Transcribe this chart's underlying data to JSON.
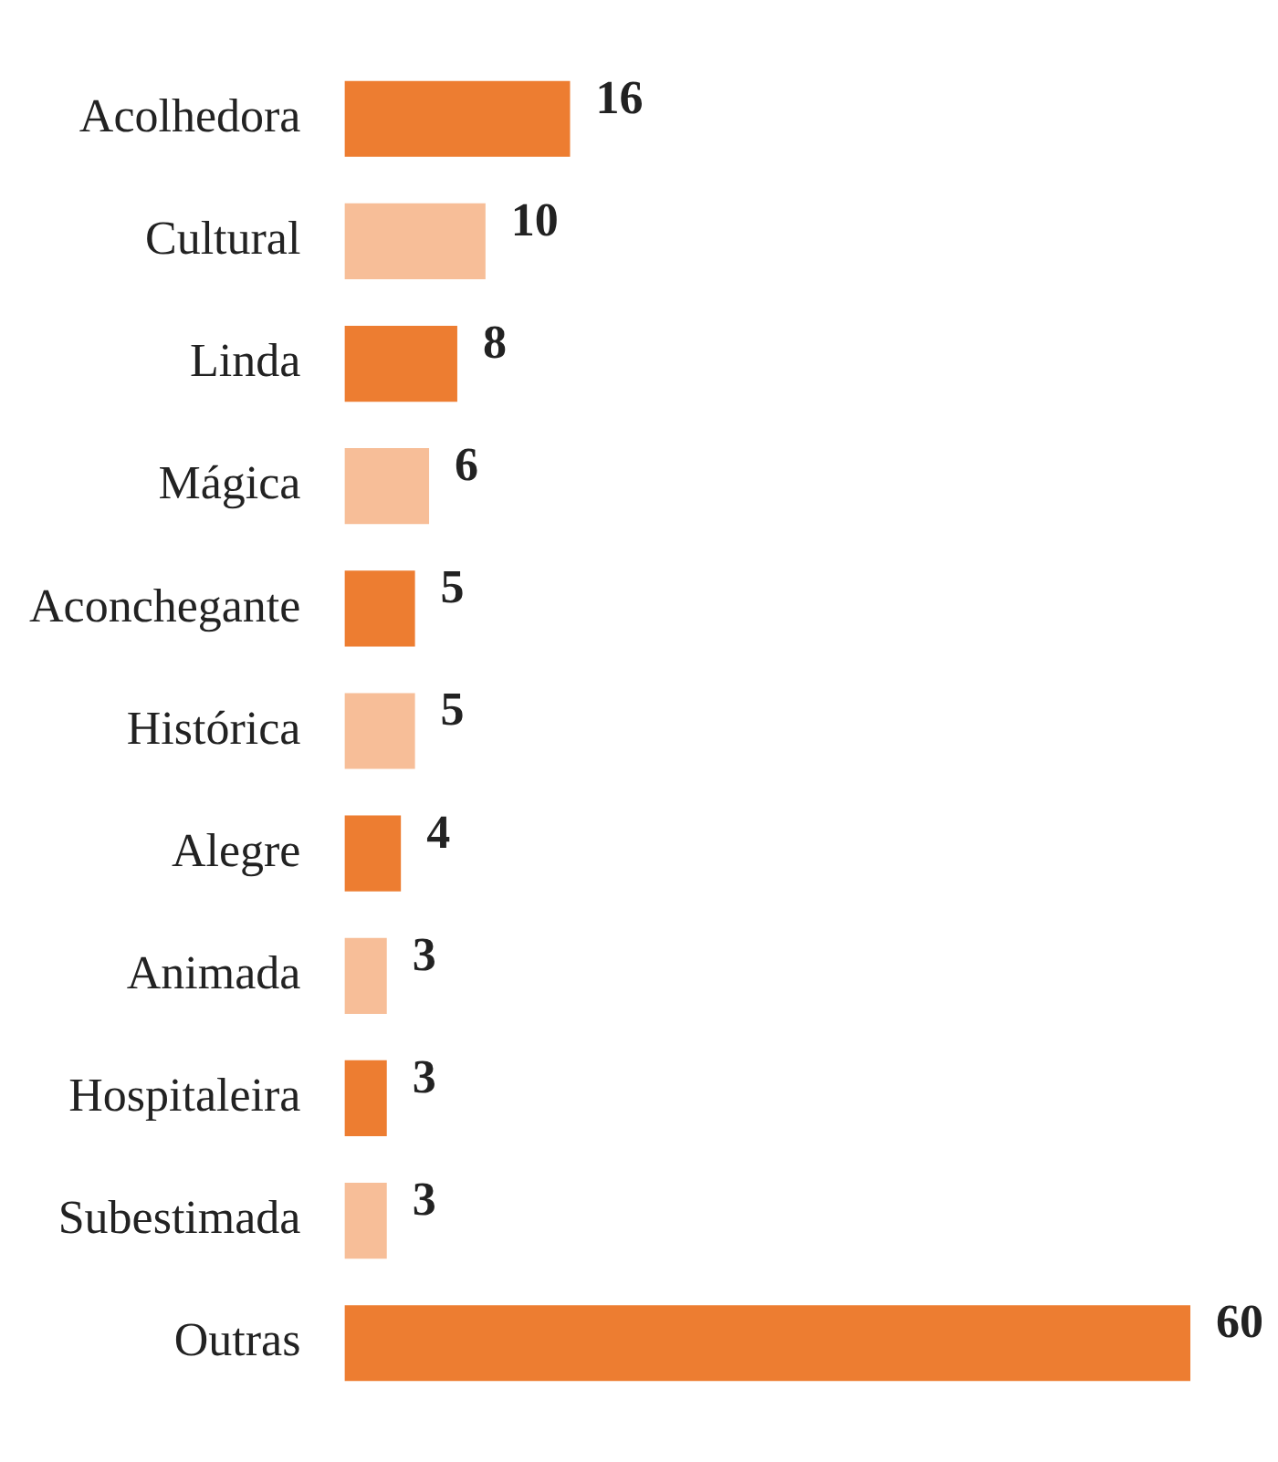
{
  "chart_data": {
    "type": "bar",
    "orientation": "horizontal",
    "categories": [
      "Acolhedora",
      "Cultural",
      "Linda",
      "Mágica",
      "Aconchegante",
      "Histórica",
      "Alegre",
      "Animada",
      "Hospitaleira",
      "Subestimada",
      "Outras"
    ],
    "values": [
      16,
      10,
      8,
      6,
      5,
      5,
      4,
      3,
      3,
      3,
      60
    ],
    "colors": [
      "#ed7d31",
      "#f7be98",
      "#ed7d31",
      "#f7be98",
      "#ed7d31",
      "#f7be98",
      "#ed7d31",
      "#f7be98",
      "#ed7d31",
      "#f7be98",
      "#ed7d31"
    ],
    "data_labels": true,
    "legend": false
  }
}
